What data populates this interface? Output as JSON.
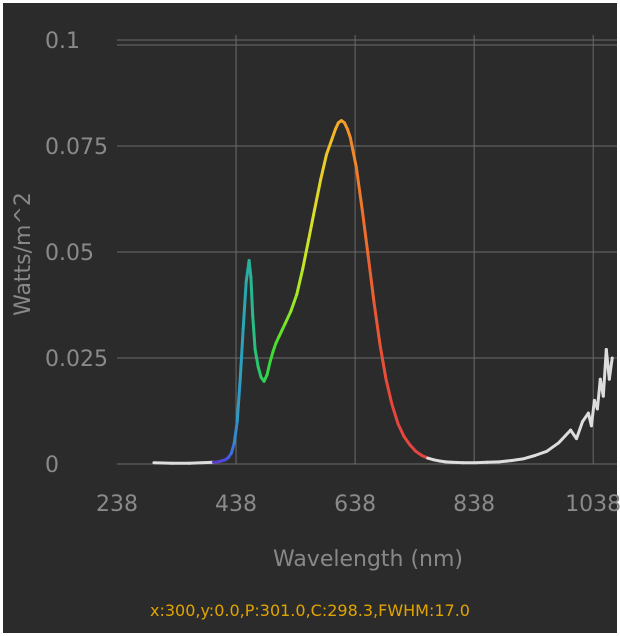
{
  "colors": {
    "background": "#2b2b2b",
    "grid": "#6b6b6b",
    "tick_text": "#8a8a8a",
    "status_text": "#e0a400",
    "tail_trace": "#dddddd"
  },
  "status": {
    "readout": "x:300,y:0.0,P:301.0,C:298.3,FWHM:17.0"
  },
  "chart_data": {
    "type": "line",
    "title": "",
    "xlabel": "Wavelength (nm)",
    "ylabel": "Watts/m^2",
    "xlim": [
      238,
      1078
    ],
    "ylim": [
      0,
      0.1
    ],
    "grid": true,
    "x_tick_labels": [
      "238",
      "438",
      "638",
      "838",
      "1038"
    ],
    "y_tick_labels": [
      "0",
      "0.025",
      "0.05",
      "0.075",
      "0.1"
    ],
    "x_ticks": [
      238,
      438,
      638,
      838,
      1038
    ],
    "y_ticks": [
      0,
      0.025,
      0.05,
      0.075,
      0.1
    ],
    "series": [
      {
        "color_mode": "spectral (visible range), white outside",
        "x": [
          300,
          330,
          360,
          380,
          400,
          410,
          420,
          425,
          430,
          435,
          440,
          445,
          450,
          455,
          460,
          463,
          466,
          470,
          475,
          480,
          485,
          490,
          495,
          500,
          505,
          510,
          520,
          530,
          540,
          550,
          560,
          570,
          580,
          590,
          600,
          605,
          610,
          615,
          620,
          625,
          630,
          640,
          650,
          660,
          670,
          680,
          690,
          700,
          710,
          720,
          730,
          740,
          750,
          760,
          770,
          780,
          790,
          800,
          820,
          840,
          860,
          880,
          900,
          920,
          940,
          960,
          980,
          1000,
          1010,
          1020,
          1030,
          1035,
          1040,
          1045,
          1050,
          1055,
          1060,
          1065,
          1070
        ],
        "y": [
          0.0003,
          0.0002,
          0.0002,
          0.0003,
          0.0004,
          0.0006,
          0.001,
          0.0015,
          0.0025,
          0.005,
          0.01,
          0.02,
          0.032,
          0.043,
          0.048,
          0.044,
          0.035,
          0.027,
          0.023,
          0.0205,
          0.0195,
          0.021,
          0.024,
          0.0265,
          0.0285,
          0.03,
          0.033,
          0.036,
          0.04,
          0.046,
          0.053,
          0.06,
          0.067,
          0.073,
          0.077,
          0.079,
          0.0805,
          0.081,
          0.0805,
          0.079,
          0.077,
          0.07,
          0.06,
          0.049,
          0.038,
          0.028,
          0.02,
          0.014,
          0.0095,
          0.0065,
          0.0045,
          0.003,
          0.002,
          0.0014,
          0.001,
          0.0007,
          0.0005,
          0.0004,
          0.0003,
          0.0003,
          0.0004,
          0.0005,
          0.0008,
          0.0012,
          0.002,
          0.003,
          0.005,
          0.008,
          0.006,
          0.01,
          0.012,
          0.009,
          0.015,
          0.013,
          0.02,
          0.016,
          0.027,
          0.02,
          0.025
        ]
      }
    ]
  }
}
